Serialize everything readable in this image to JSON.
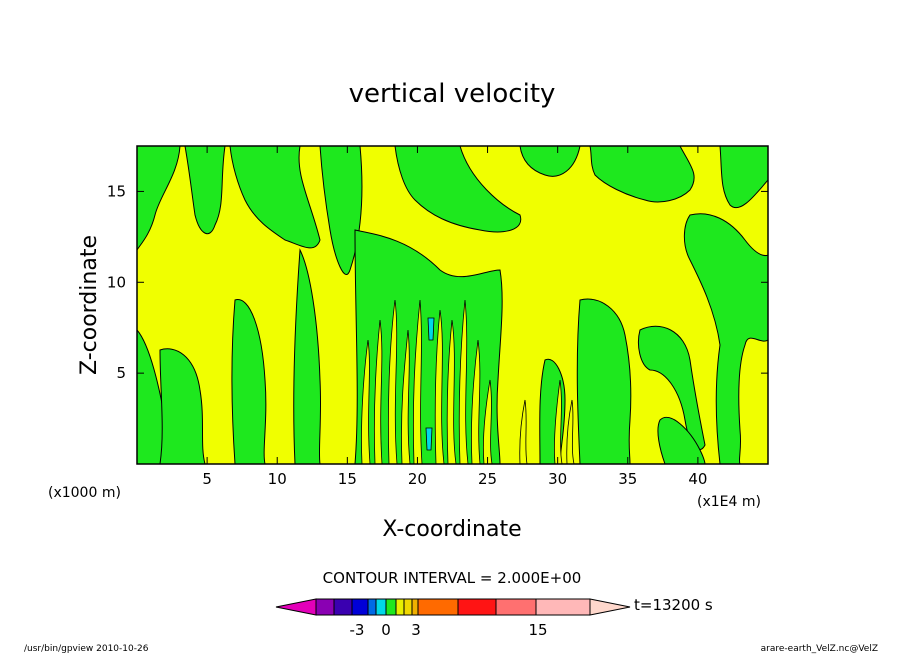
{
  "chart_data": {
    "type": "heatmap",
    "title": "vertical velocity",
    "xlabel": "X-coordinate",
    "ylabel": "Z-coordinate",
    "x_unit_left": "(x1000 m)",
    "x_unit_right": "(x1E4 m)",
    "xlim": [
      0,
      45
    ],
    "ylim": [
      0,
      17.5
    ],
    "x_ticks": [
      "5",
      "10",
      "15",
      "20",
      "25",
      "30",
      "35",
      "40"
    ],
    "x_tick_values": [
      5,
      10,
      15,
      20,
      25,
      30,
      35,
      40
    ],
    "y_ticks": [
      "5",
      "10",
      "15"
    ],
    "y_tick_values": [
      5,
      10,
      15
    ],
    "contour_interval": "CONTOUR INTERVAL = 2.000E+00",
    "time_label": "t=13200 s",
    "colorbar": {
      "colors": [
        "#e300b9",
        "#8a00b3",
        "#3a00b0",
        "#0000d8",
        "#006ae6",
        "#00d8e8",
        "#1ee81e",
        "#e8f000",
        "#f0d800",
        "#f0b000",
        "#ff6a00",
        "#ff1414",
        "#ff7070",
        "#ffb8b8",
        "#ffd8cc"
      ],
      "tick_labels": [
        "-3",
        "0",
        "3",
        "15"
      ],
      "tick_boundaries": [
        -3,
        0,
        3,
        15
      ]
    },
    "fill_colors": {
      "negative_small": "#1ee81e",
      "positive_small": "#f0ff00",
      "strong_negative": "#00d8e8"
    }
  },
  "footer": {
    "left": "/usr/bin/gpview  2010-10-26",
    "right": "arare-earth_VelZ.nc@VelZ"
  }
}
